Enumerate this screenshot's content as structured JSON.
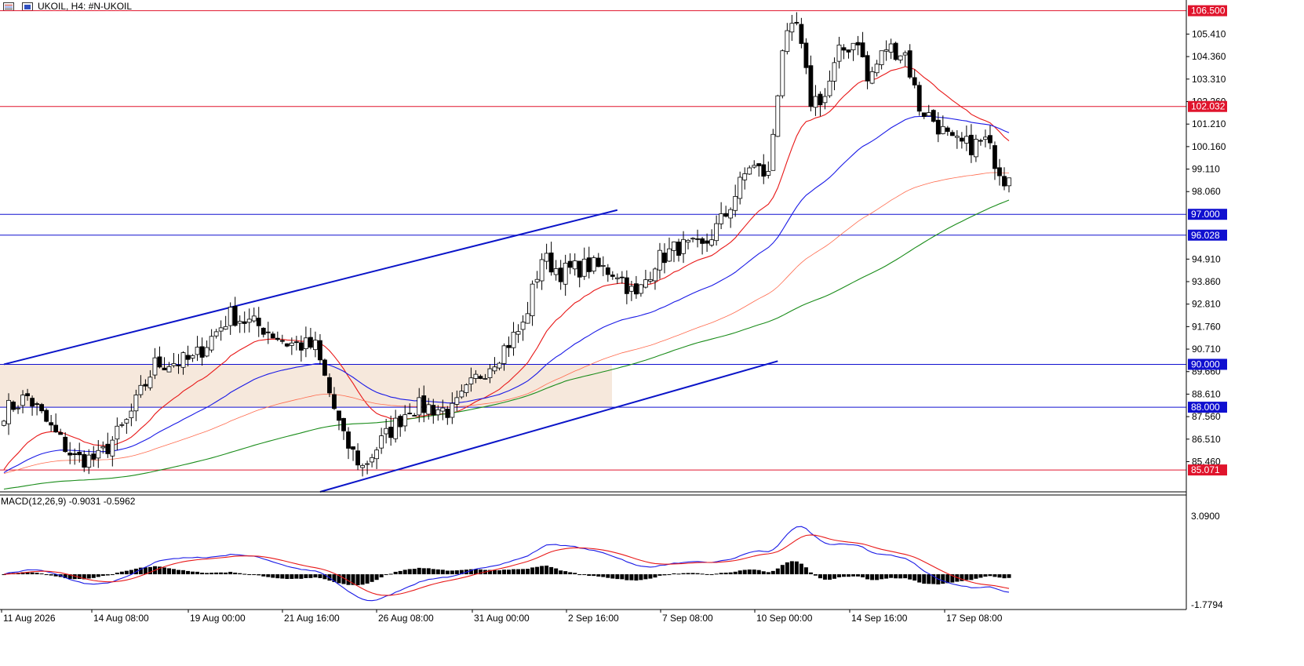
{
  "header": {
    "symbol_label": "UKOIL, H4:  #N-UKOIL"
  },
  "macd_label": "MACD(12,26,9) -0.9031 -0.5962",
  "price_axis": {
    "ticks": [
      "105.410",
      "104.360",
      "103.310",
      "102.260",
      "101.210",
      "100.160",
      "99.110",
      "98.060",
      "94.910",
      "93.860",
      "92.810",
      "91.760",
      "90.710",
      "89.660",
      "88.610",
      "87.560",
      "86.510",
      "85.460"
    ],
    "tick_values": [
      105.41,
      104.36,
      103.31,
      102.26,
      101.21,
      100.16,
      99.11,
      98.06,
      94.91,
      93.86,
      92.81,
      91.76,
      90.71,
      89.66,
      88.61,
      87.56,
      86.51,
      85.46
    ],
    "ylim": [
      84.05,
      107.0
    ]
  },
  "macd_axis": {
    "top_label": "3.0900",
    "bottom_label": "-1.7794"
  },
  "time_axis": [
    "11 Aug 2026",
    "14 Aug 08:00",
    "19 Aug 00:00",
    "21 Aug 16:00",
    "26 Aug 08:00",
    "31 Aug 00:00",
    "2 Sep 16:00",
    "7 Sep 08:00",
    "10 Sep 00:00",
    "14 Sep 16:00",
    "17 Sep 08:00"
  ],
  "levels": [
    {
      "value": 106.5,
      "label": "106.500",
      "color": "#e0142c"
    },
    {
      "value": 102.032,
      "label": "102.032",
      "color": "#e0142c"
    },
    {
      "value": 97.0,
      "label": "97.000",
      "color": "#1010d0"
    },
    {
      "value": 96.028,
      "label": "96.028",
      "color": "#1010d0"
    },
    {
      "value": 90.0,
      "label": "90.000",
      "color": "#1010d0"
    },
    {
      "value": 88.0,
      "label": "88.000",
      "color": "#1010d0"
    },
    {
      "value": 85.071,
      "label": "85.071",
      "color": "#e0142c"
    }
  ],
  "colors": {
    "ma_fast": "#e81818",
    "ma_mid": "#1a1ae6",
    "ma_slow": "#ff6a4d",
    "ma_long": "#1a8c1a",
    "macd_line": "#1a1ae6",
    "signal_line": "#e81818",
    "zone_fill": "#f6e8dc",
    "trend_line": "#0a14c8"
  },
  "chart_data": {
    "type": "candlestick",
    "symbol": "UKOIL",
    "timeframe": "H4",
    "ylim": [
      84.05,
      107.0
    ],
    "control_points": [
      {
        "i": 0,
        "p": 87.8
      },
      {
        "i": 5,
        "p": 88.5
      },
      {
        "i": 10,
        "p": 87.0
      },
      {
        "i": 15,
        "p": 85.6
      },
      {
        "i": 20,
        "p": 85.6
      },
      {
        "i": 26,
        "p": 87.3
      },
      {
        "i": 32,
        "p": 90.0
      },
      {
        "i": 40,
        "p": 90.2
      },
      {
        "i": 48,
        "p": 92.3
      },
      {
        "i": 55,
        "p": 91.7
      },
      {
        "i": 60,
        "p": 91.0
      },
      {
        "i": 66,
        "p": 90.8
      },
      {
        "i": 72,
        "p": 86.5
      },
      {
        "i": 76,
        "p": 85.2
      },
      {
        "i": 80,
        "p": 86.4
      },
      {
        "i": 86,
        "p": 88.0
      },
      {
        "i": 90,
        "p": 88.0
      },
      {
        "i": 95,
        "p": 87.8
      },
      {
        "i": 100,
        "p": 89.3
      },
      {
        "i": 105,
        "p": 90.5
      },
      {
        "i": 110,
        "p": 91.8
      },
      {
        "i": 114,
        "p": 95.0
      },
      {
        "i": 118,
        "p": 94.3
      },
      {
        "i": 124,
        "p": 94.6
      },
      {
        "i": 130,
        "p": 94.3
      },
      {
        "i": 134,
        "p": 93.1
      },
      {
        "i": 138,
        "p": 94.8
      },
      {
        "i": 143,
        "p": 95.5
      },
      {
        "i": 148,
        "p": 95.4
      },
      {
        "i": 153,
        "p": 97.0
      },
      {
        "i": 158,
        "p": 99.3
      },
      {
        "i": 162,
        "p": 98.8
      },
      {
        "i": 165,
        "p": 104.8
      },
      {
        "i": 168,
        "p": 105.8
      },
      {
        "i": 171,
        "p": 102.3
      },
      {
        "i": 174,
        "p": 102.5
      },
      {
        "i": 177,
        "p": 104.5
      },
      {
        "i": 181,
        "p": 105.2
      },
      {
        "i": 183,
        "p": 103.2
      },
      {
        "i": 187,
        "p": 104.8
      },
      {
        "i": 191,
        "p": 104.5
      },
      {
        "i": 194,
        "p": 102.0
      },
      {
        "i": 197,
        "p": 101.4
      },
      {
        "i": 201,
        "p": 100.3
      },
      {
        "i": 205,
        "p": 100.2
      },
      {
        "i": 208,
        "p": 100.4
      },
      {
        "i": 212,
        "p": 98.7
      }
    ],
    "moving_averages": [
      {
        "period": 20,
        "color": "#e81818"
      },
      {
        "period": 50,
        "color": "#1a1ae6"
      },
      {
        "period": 100,
        "color": "#ff6a4d"
      },
      {
        "period": 200,
        "color": "#1a8c1a"
      }
    ],
    "indicator": {
      "name": "MACD",
      "params": [
        12,
        26,
        9
      ],
      "macd": -0.9031,
      "signal": -0.5962,
      "ylim": [
        -1.7794,
        3.09
      ]
    },
    "zone": {
      "from": 88.0,
      "to": 90.0
    },
    "trendlines": [
      {
        "from": {
          "i": 0,
          "p": 90.0
        },
        "to": {
          "i": 130,
          "p": 97.2
        }
      },
      {
        "from": {
          "i": 67,
          "p": 84.05
        },
        "to": {
          "i": 164,
          "p": 90.15
        }
      }
    ]
  }
}
